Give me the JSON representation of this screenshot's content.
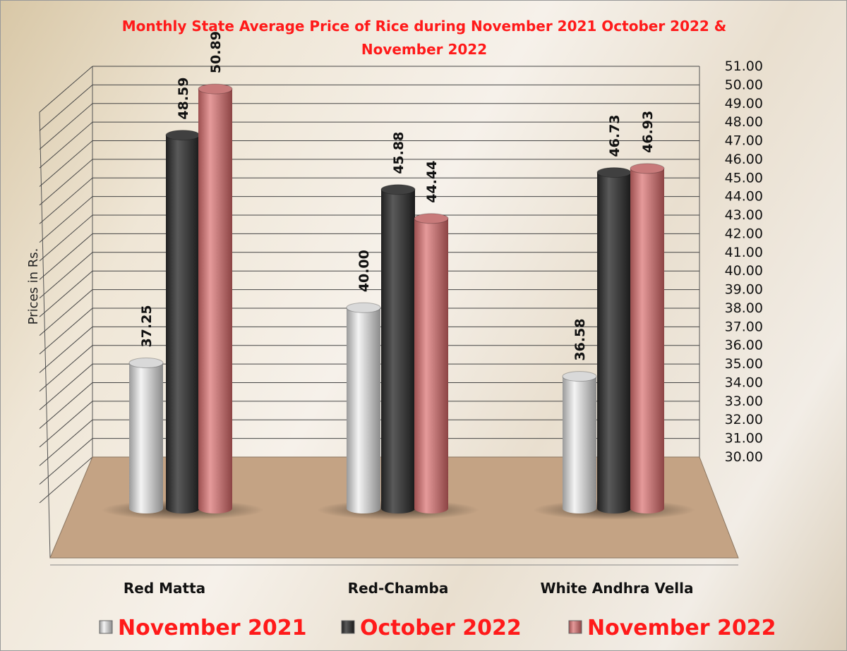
{
  "chart_data": {
    "type": "bar",
    "title": "Monthly State Average Price of Rice during  November 2021  October 2022  & November 2022",
    "y_label": "Prices in Rs.",
    "categories": [
      "Red Matta",
      "Red-Chamba",
      "White Andhra Vella"
    ],
    "series": [
      {
        "name": "November 2021",
        "color": "#d9d9d9",
        "values": [
          37.25,
          40.0,
          36.58
        ],
        "value_labels": [
          "37.25",
          "40.00",
          "36.58"
        ]
      },
      {
        "name": "October 2022",
        "color": "#404040",
        "values": [
          48.59,
          45.88,
          46.73
        ],
        "value_labels": [
          "48.59",
          "45.88",
          "46.73"
        ]
      },
      {
        "name": "November 2022",
        "color": "#c87a7a",
        "values": [
          50.89,
          44.44,
          46.93
        ],
        "value_labels": [
          "50.89",
          "44.44",
          "46.93"
        ]
      }
    ],
    "ylim": [
      30,
      51
    ],
    "yticks": [
      {
        "value": 30,
        "label": "30.00"
      },
      {
        "value": 31,
        "label": "31.00"
      },
      {
        "value": 32,
        "label": "32.00"
      },
      {
        "value": 33,
        "label": "33.00"
      },
      {
        "value": 34,
        "label": "34.00"
      },
      {
        "value": 35,
        "label": "35.00"
      },
      {
        "value": 36,
        "label": "36.00"
      },
      {
        "value": 37,
        "label": "37.00"
      },
      {
        "value": 38,
        "label": "38.00"
      },
      {
        "value": 39,
        "label": "39.00"
      },
      {
        "value": 40,
        "label": "40.00"
      },
      {
        "value": 41,
        "label": "41.00"
      },
      {
        "value": 42,
        "label": "42.00"
      },
      {
        "value": 43,
        "label": "43.00"
      },
      {
        "value": 44,
        "label": "44.00"
      },
      {
        "value": 45,
        "label": "45.00"
      },
      {
        "value": 46,
        "label": "46.00"
      },
      {
        "value": 47,
        "label": "47.00"
      },
      {
        "value": 48,
        "label": "48.00"
      },
      {
        "value": 49,
        "label": "49.00"
      },
      {
        "value": 50,
        "label": "50.00"
      },
      {
        "value": 51,
        "label": "51.00"
      }
    ],
    "grid": true,
    "legend": "bottom"
  }
}
